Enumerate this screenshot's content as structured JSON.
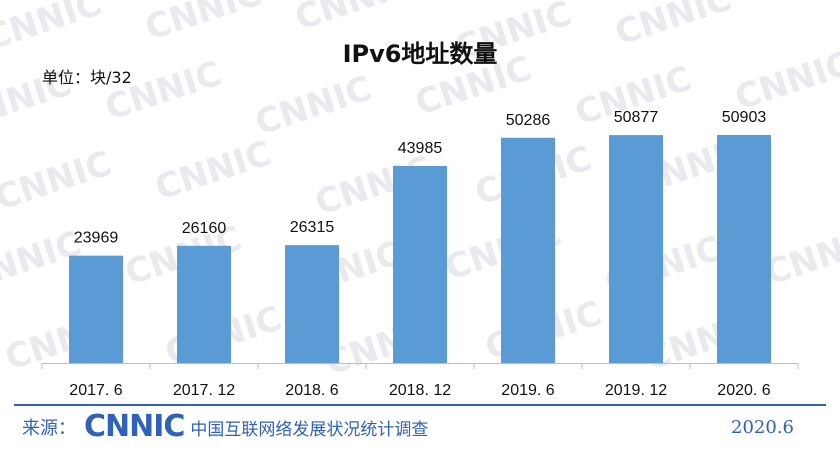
{
  "watermark": "CNNIC",
  "chart_data": {
    "type": "bar",
    "title": "IPv6地址数量",
    "unit_label": "单位：块/32",
    "categories": [
      "2017. 6",
      "2017. 12",
      "2018. 6",
      "2018. 12",
      "2019. 6",
      "2019. 12",
      "2020. 6"
    ],
    "values": [
      23969,
      26160,
      26315,
      43985,
      50286,
      50877,
      50903
    ],
    "ylim": [
      0,
      60000
    ],
    "grid": false,
    "legend": "none",
    "bar_color": "#5b9bd5"
  },
  "footer": {
    "source_label": "来源：",
    "logo_text": "CNNIC",
    "survey_title": "中国互联网络发展状况统计调查",
    "date": "2020.6"
  },
  "colors": {
    "brand_blue": "#2f62b8",
    "bar": "#5b9bd5"
  }
}
